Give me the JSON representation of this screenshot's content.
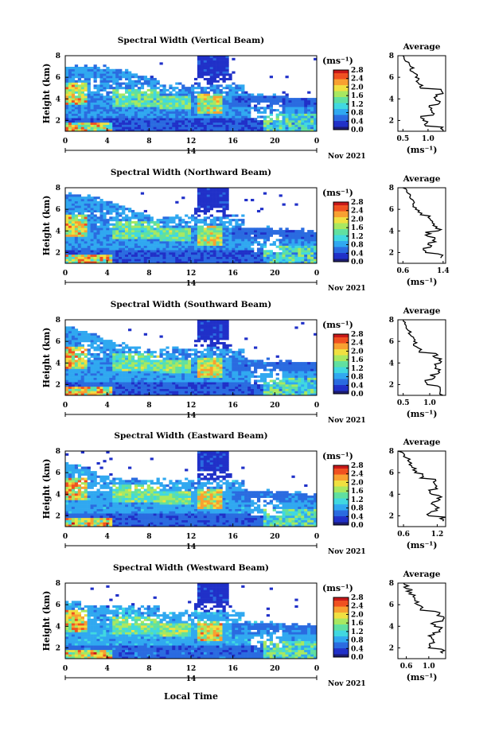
{
  "figure": {
    "x_axis_label": "Local Time",
    "day_label": "14",
    "date_label": "Nov 2021",
    "height_label": "Height (km)",
    "unit_label": "(ms⁻¹)",
    "avg_unit_label": "(ms⁻¹)",
    "avg_title": "Average"
  },
  "chart_data": [
    {
      "type": "heatmap",
      "title": "Spectral Width (Vertical Beam)",
      "ylabel": "Height (km)",
      "xlabel": "Local Time",
      "x_ticks": [
        "0",
        "4",
        "8",
        "12",
        "16",
        "20",
        "0"
      ],
      "x_range_hours": [
        0,
        24
      ],
      "y_ticks": [
        "2",
        "4",
        "6",
        "8"
      ],
      "y_range_km": [
        1,
        8
      ],
      "colorbar_ticks": [
        "0.0",
        "0.4",
        "0.8",
        "1.2",
        "1.6",
        "2.0",
        "2.4",
        "2.8"
      ],
      "colorbar_range": [
        0,
        2.8
      ],
      "profile": {
        "title": "Average",
        "xlabel": "(ms⁻¹)",
        "x_ticks": [
          "0.5",
          "1.0"
        ],
        "x_range": [
          0.4,
          1.35
        ],
        "y_ticks": [
          "2",
          "4",
          "6",
          "8"
        ],
        "y_range_km": [
          1,
          8
        ],
        "heights_km": [
          1.0,
          1.5,
          2.0,
          2.5,
          3.0,
          3.5,
          4.0,
          4.5,
          5.0,
          5.5,
          6.0,
          6.5,
          7.0,
          7.5,
          8.0
        ],
        "values": [
          1.3,
          0.95,
          0.9,
          1.1,
          1.05,
          1.2,
          1.15,
          1.3,
          0.85,
          0.8,
          0.75,
          0.7,
          0.65,
          0.55,
          0.5
        ]
      }
    },
    {
      "type": "heatmap",
      "title": "Spectral Width (Northward Beam)",
      "ylabel": "Height (km)",
      "x_ticks": [
        "0",
        "4",
        "8",
        "12",
        "16",
        "20",
        "0"
      ],
      "x_range_hours": [
        0,
        24
      ],
      "y_ticks": [
        "2",
        "4",
        "6",
        "8"
      ],
      "y_range_km": [
        1,
        8
      ],
      "colorbar_ticks": [
        "0.0",
        "0.4",
        "0.8",
        "1.2",
        "1.6",
        "2.0",
        "2.4",
        "2.8"
      ],
      "colorbar_range": [
        0,
        2.8
      ],
      "profile": {
        "title": "Average",
        "xlabel": "(ms⁻¹)",
        "x_ticks": [
          "0.6",
          "1.4"
        ],
        "x_range": [
          0.5,
          1.45
        ],
        "y_ticks": [
          "2",
          "4",
          "6",
          "8"
        ],
        "y_range_km": [
          1,
          8
        ],
        "heights_km": [
          1.5,
          2.0,
          2.5,
          3.0,
          3.5,
          4.0,
          4.5,
          5.0,
          5.5,
          6.0,
          6.5,
          7.0,
          7.5,
          8.0
        ],
        "values": [
          1.35,
          1.05,
          1.15,
          1.25,
          1.1,
          1.3,
          1.2,
          1.15,
          0.95,
          0.85,
          0.8,
          0.75,
          0.7,
          0.6
        ]
      }
    },
    {
      "type": "heatmap",
      "title": "Spectral Width (Southward Beam)",
      "ylabel": "Height (km)",
      "x_ticks": [
        "0",
        "4",
        "8",
        "12",
        "16",
        "20",
        "0"
      ],
      "x_range_hours": [
        0,
        24
      ],
      "y_ticks": [
        "2",
        "4",
        "6",
        "8"
      ],
      "y_range_km": [
        1,
        8
      ],
      "colorbar_ticks": [
        "0.0",
        "0.4",
        "0.8",
        "1.2",
        "1.6",
        "2.0",
        "2.4",
        "2.8"
      ],
      "colorbar_range": [
        0,
        2.8
      ],
      "profile": {
        "title": "Average",
        "xlabel": "(ms⁻¹)",
        "x_ticks": [
          "0.5",
          "1.0"
        ],
        "x_range": [
          0.4,
          1.3
        ],
        "y_ticks": [
          "2",
          "4",
          "6",
          "8"
        ],
        "y_range_km": [
          1,
          8
        ],
        "heights_km": [
          1.0,
          1.5,
          2.0,
          2.5,
          3.0,
          3.5,
          4.0,
          4.5,
          5.0,
          5.5,
          6.0,
          6.5,
          7.0,
          7.5,
          8.0
        ],
        "values": [
          1.25,
          1.2,
          0.95,
          1.05,
          1.15,
          1.1,
          1.2,
          1.1,
          0.8,
          0.75,
          0.7,
          0.65,
          0.6,
          0.55,
          0.5
        ]
      }
    },
    {
      "type": "heatmap",
      "title": "Spectral Width (Eastward Beam)",
      "ylabel": "Height (km)",
      "x_ticks": [
        "0",
        "4",
        "8",
        "12",
        "16",
        "20",
        "0"
      ],
      "x_range_hours": [
        0,
        24
      ],
      "y_ticks": [
        "2",
        "4",
        "6",
        "8"
      ],
      "y_range_km": [
        1,
        8
      ],
      "colorbar_ticks": [
        "0.0",
        "0.4",
        "0.8",
        "1.2",
        "1.6",
        "2.0",
        "2.4",
        "2.8"
      ],
      "colorbar_range": [
        0,
        2.8
      ],
      "profile": {
        "title": "Average",
        "xlabel": "(ms⁻¹)",
        "x_ticks": [
          "0.6",
          "1.2"
        ],
        "x_range": [
          0.5,
          1.35
        ],
        "y_ticks": [
          "2",
          "4",
          "6",
          "8"
        ],
        "y_range_km": [
          1,
          8
        ],
        "heights_km": [
          1.5,
          2.0,
          2.5,
          3.0,
          3.5,
          4.0,
          4.5,
          5.0,
          5.5,
          6.0,
          6.5,
          7.0,
          7.5,
          8.0
        ],
        "values": [
          1.3,
          1.05,
          1.2,
          1.15,
          1.25,
          1.1,
          1.2,
          1.15,
          0.9,
          0.8,
          0.75,
          0.7,
          0.6,
          0.5
        ]
      }
    },
    {
      "type": "heatmap",
      "title": "Spectral Width (Westward Beam)",
      "ylabel": "Height (km)",
      "xlabel": "Local Time",
      "x_ticks": [
        "0",
        "4",
        "8",
        "12",
        "16",
        "20",
        "0"
      ],
      "x_range_hours": [
        0,
        24
      ],
      "y_ticks": [
        "2",
        "4",
        "6",
        "8"
      ],
      "y_range_km": [
        1,
        8
      ],
      "colorbar_ticks": [
        "0.0",
        "0.4",
        "0.8",
        "1.2",
        "1.6",
        "2.0",
        "2.4",
        "2.8"
      ],
      "colorbar_range": [
        0,
        2.8
      ],
      "profile": {
        "title": "Average",
        "xlabel": "(ms⁻¹)",
        "x_ticks": [
          "0.6",
          "1.0"
        ],
        "x_range": [
          0.45,
          1.3
        ],
        "y_ticks": [
          "2",
          "4",
          "6",
          "8"
        ],
        "y_range_km": [
          1,
          8
        ],
        "heights_km": [
          1.5,
          2.0,
          2.5,
          3.0,
          3.5,
          4.0,
          4.5,
          5.0,
          5.5,
          6.0,
          6.5,
          7.0,
          7.5,
          8.0
        ],
        "values": [
          1.25,
          1.0,
          1.1,
          1.05,
          1.2,
          1.1,
          1.25,
          1.15,
          0.85,
          0.8,
          0.75,
          0.65,
          0.6,
          0.55
        ]
      }
    }
  ],
  "colormap": [
    "#1a1a6e",
    "#2030c8",
    "#2a6be0",
    "#30a8f0",
    "#40d8e0",
    "#60e0a0",
    "#a8e860",
    "#f0e040",
    "#f8a030",
    "#f05020",
    "#c81818"
  ]
}
